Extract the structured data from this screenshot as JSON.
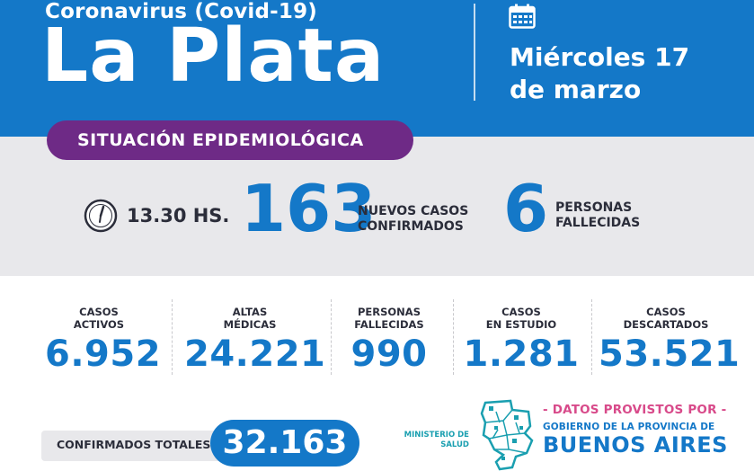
{
  "header": {
    "subtitle": "Coronavirus (Covid-19)",
    "city": "La Plata",
    "date_line1": "Miércoles 17",
    "date_line2": "de marzo"
  },
  "banner": {
    "label": "SITUACIÓN EPIDEMIOLÓGICA"
  },
  "daily": {
    "time": "13.30 HS.",
    "new_cases": "163",
    "new_cases_label_line1": "NUEVOS CASOS",
    "new_cases_label_line2": "CONFIRMADOS",
    "deaths": "6",
    "deaths_label_line1": "PERSONAS",
    "deaths_label_line2": "FALLECIDAS"
  },
  "stats": [
    {
      "label": "CASOS\nACTIVOS",
      "value": "6.952"
    },
    {
      "label": "ALTAS\nMÉDICAS",
      "value": "24.221"
    },
    {
      "label": "PERSONAS\nFALLECIDAS",
      "value": "990"
    },
    {
      "label": "CASOS\nEN ESTUDIO",
      "value": "1.281"
    },
    {
      "label": "CASOS\nDESCARTADOS",
      "value": "53.521"
    }
  ],
  "totals": {
    "label": "CONFIRMADOS TOTALES",
    "value": "32.163"
  },
  "footer": {
    "ministerio_line1": "MINISTERIO DE",
    "ministerio_line2": "SALUD",
    "provided_by": "- DATOS PROVISTOS POR -",
    "government": "GOBIERNO DE LA PROVINCIA DE",
    "province": "BUENOS AIRES"
  },
  "colors": {
    "primary_blue": "#1478c8",
    "purple": "#6e2a86",
    "gray_band": "#e8e8eb",
    "dark_text": "#2b2d3a",
    "pink": "#d84a8a",
    "teal": "#1a9fb0"
  },
  "icons": [
    "calendar-icon",
    "clock-icon",
    "province-map-logo"
  ]
}
